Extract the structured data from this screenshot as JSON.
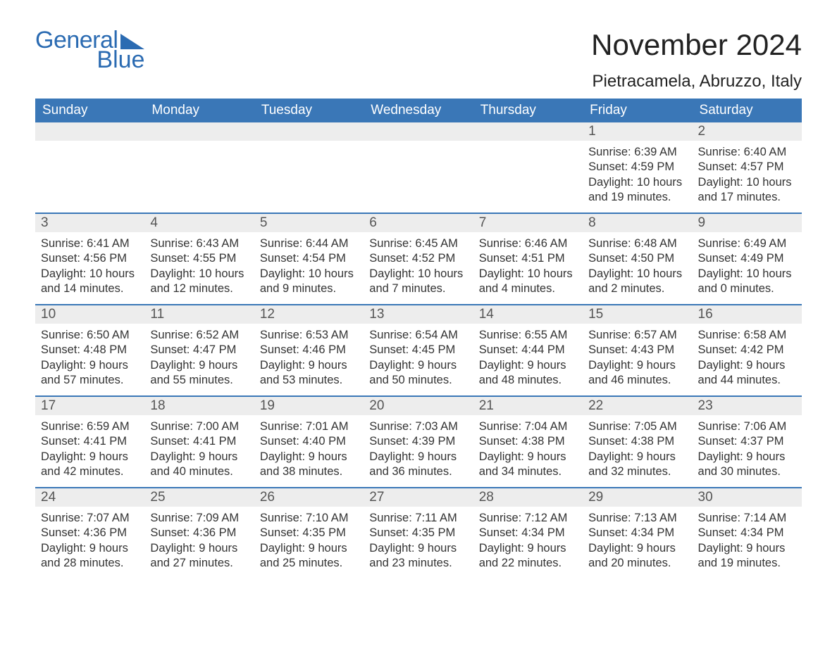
{
  "logo": {
    "part1": "General",
    "part2": "Blue"
  },
  "title": "November 2024",
  "location": "Pietracamela, Abruzzo, Italy",
  "colors": {
    "brand_blue": "#3a77b7",
    "logo_blue": "#2b6bb2",
    "daynum_bg": "#ededed",
    "text": "#333333",
    "background": "#ffffff"
  },
  "day_labels": [
    "Sunday",
    "Monday",
    "Tuesday",
    "Wednesday",
    "Thursday",
    "Friday",
    "Saturday"
  ],
  "weeks": [
    [
      {
        "empty": true
      },
      {
        "empty": true
      },
      {
        "empty": true
      },
      {
        "empty": true
      },
      {
        "empty": true
      },
      {
        "n": "1",
        "sunrise": "Sunrise: 6:39 AM",
        "sunset": "Sunset: 4:59 PM",
        "day1": "Daylight: 10 hours",
        "day2": "and 19 minutes."
      },
      {
        "n": "2",
        "sunrise": "Sunrise: 6:40 AM",
        "sunset": "Sunset: 4:57 PM",
        "day1": "Daylight: 10 hours",
        "day2": "and 17 minutes."
      }
    ],
    [
      {
        "n": "3",
        "sunrise": "Sunrise: 6:41 AM",
        "sunset": "Sunset: 4:56 PM",
        "day1": "Daylight: 10 hours",
        "day2": "and 14 minutes."
      },
      {
        "n": "4",
        "sunrise": "Sunrise: 6:43 AM",
        "sunset": "Sunset: 4:55 PM",
        "day1": "Daylight: 10 hours",
        "day2": "and 12 minutes."
      },
      {
        "n": "5",
        "sunrise": "Sunrise: 6:44 AM",
        "sunset": "Sunset: 4:54 PM",
        "day1": "Daylight: 10 hours",
        "day2": "and 9 minutes."
      },
      {
        "n": "6",
        "sunrise": "Sunrise: 6:45 AM",
        "sunset": "Sunset: 4:52 PM",
        "day1": "Daylight: 10 hours",
        "day2": "and 7 minutes."
      },
      {
        "n": "7",
        "sunrise": "Sunrise: 6:46 AM",
        "sunset": "Sunset: 4:51 PM",
        "day1": "Daylight: 10 hours",
        "day2": "and 4 minutes."
      },
      {
        "n": "8",
        "sunrise": "Sunrise: 6:48 AM",
        "sunset": "Sunset: 4:50 PM",
        "day1": "Daylight: 10 hours",
        "day2": "and 2 minutes."
      },
      {
        "n": "9",
        "sunrise": "Sunrise: 6:49 AM",
        "sunset": "Sunset: 4:49 PM",
        "day1": "Daylight: 10 hours",
        "day2": "and 0 minutes."
      }
    ],
    [
      {
        "n": "10",
        "sunrise": "Sunrise: 6:50 AM",
        "sunset": "Sunset: 4:48 PM",
        "day1": "Daylight: 9 hours",
        "day2": "and 57 minutes."
      },
      {
        "n": "11",
        "sunrise": "Sunrise: 6:52 AM",
        "sunset": "Sunset: 4:47 PM",
        "day1": "Daylight: 9 hours",
        "day2": "and 55 minutes."
      },
      {
        "n": "12",
        "sunrise": "Sunrise: 6:53 AM",
        "sunset": "Sunset: 4:46 PM",
        "day1": "Daylight: 9 hours",
        "day2": "and 53 minutes."
      },
      {
        "n": "13",
        "sunrise": "Sunrise: 6:54 AM",
        "sunset": "Sunset: 4:45 PM",
        "day1": "Daylight: 9 hours",
        "day2": "and 50 minutes."
      },
      {
        "n": "14",
        "sunrise": "Sunrise: 6:55 AM",
        "sunset": "Sunset: 4:44 PM",
        "day1": "Daylight: 9 hours",
        "day2": "and 48 minutes."
      },
      {
        "n": "15",
        "sunrise": "Sunrise: 6:57 AM",
        "sunset": "Sunset: 4:43 PM",
        "day1": "Daylight: 9 hours",
        "day2": "and 46 minutes."
      },
      {
        "n": "16",
        "sunrise": "Sunrise: 6:58 AM",
        "sunset": "Sunset: 4:42 PM",
        "day1": "Daylight: 9 hours",
        "day2": "and 44 minutes."
      }
    ],
    [
      {
        "n": "17",
        "sunrise": "Sunrise: 6:59 AM",
        "sunset": "Sunset: 4:41 PM",
        "day1": "Daylight: 9 hours",
        "day2": "and 42 minutes."
      },
      {
        "n": "18",
        "sunrise": "Sunrise: 7:00 AM",
        "sunset": "Sunset: 4:41 PM",
        "day1": "Daylight: 9 hours",
        "day2": "and 40 minutes."
      },
      {
        "n": "19",
        "sunrise": "Sunrise: 7:01 AM",
        "sunset": "Sunset: 4:40 PM",
        "day1": "Daylight: 9 hours",
        "day2": "and 38 minutes."
      },
      {
        "n": "20",
        "sunrise": "Sunrise: 7:03 AM",
        "sunset": "Sunset: 4:39 PM",
        "day1": "Daylight: 9 hours",
        "day2": "and 36 minutes."
      },
      {
        "n": "21",
        "sunrise": "Sunrise: 7:04 AM",
        "sunset": "Sunset: 4:38 PM",
        "day1": "Daylight: 9 hours",
        "day2": "and 34 minutes."
      },
      {
        "n": "22",
        "sunrise": "Sunrise: 7:05 AM",
        "sunset": "Sunset: 4:38 PM",
        "day1": "Daylight: 9 hours",
        "day2": "and 32 minutes."
      },
      {
        "n": "23",
        "sunrise": "Sunrise: 7:06 AM",
        "sunset": "Sunset: 4:37 PM",
        "day1": "Daylight: 9 hours",
        "day2": "and 30 minutes."
      }
    ],
    [
      {
        "n": "24",
        "sunrise": "Sunrise: 7:07 AM",
        "sunset": "Sunset: 4:36 PM",
        "day1": "Daylight: 9 hours",
        "day2": "and 28 minutes."
      },
      {
        "n": "25",
        "sunrise": "Sunrise: 7:09 AM",
        "sunset": "Sunset: 4:36 PM",
        "day1": "Daylight: 9 hours",
        "day2": "and 27 minutes."
      },
      {
        "n": "26",
        "sunrise": "Sunrise: 7:10 AM",
        "sunset": "Sunset: 4:35 PM",
        "day1": "Daylight: 9 hours",
        "day2": "and 25 minutes."
      },
      {
        "n": "27",
        "sunrise": "Sunrise: 7:11 AM",
        "sunset": "Sunset: 4:35 PM",
        "day1": "Daylight: 9 hours",
        "day2": "and 23 minutes."
      },
      {
        "n": "28",
        "sunrise": "Sunrise: 7:12 AM",
        "sunset": "Sunset: 4:34 PM",
        "day1": "Daylight: 9 hours",
        "day2": "and 22 minutes."
      },
      {
        "n": "29",
        "sunrise": "Sunrise: 7:13 AM",
        "sunset": "Sunset: 4:34 PM",
        "day1": "Daylight: 9 hours",
        "day2": "and 20 minutes."
      },
      {
        "n": "30",
        "sunrise": "Sunrise: 7:14 AM",
        "sunset": "Sunset: 4:34 PM",
        "day1": "Daylight: 9 hours",
        "day2": "and 19 minutes."
      }
    ]
  ]
}
